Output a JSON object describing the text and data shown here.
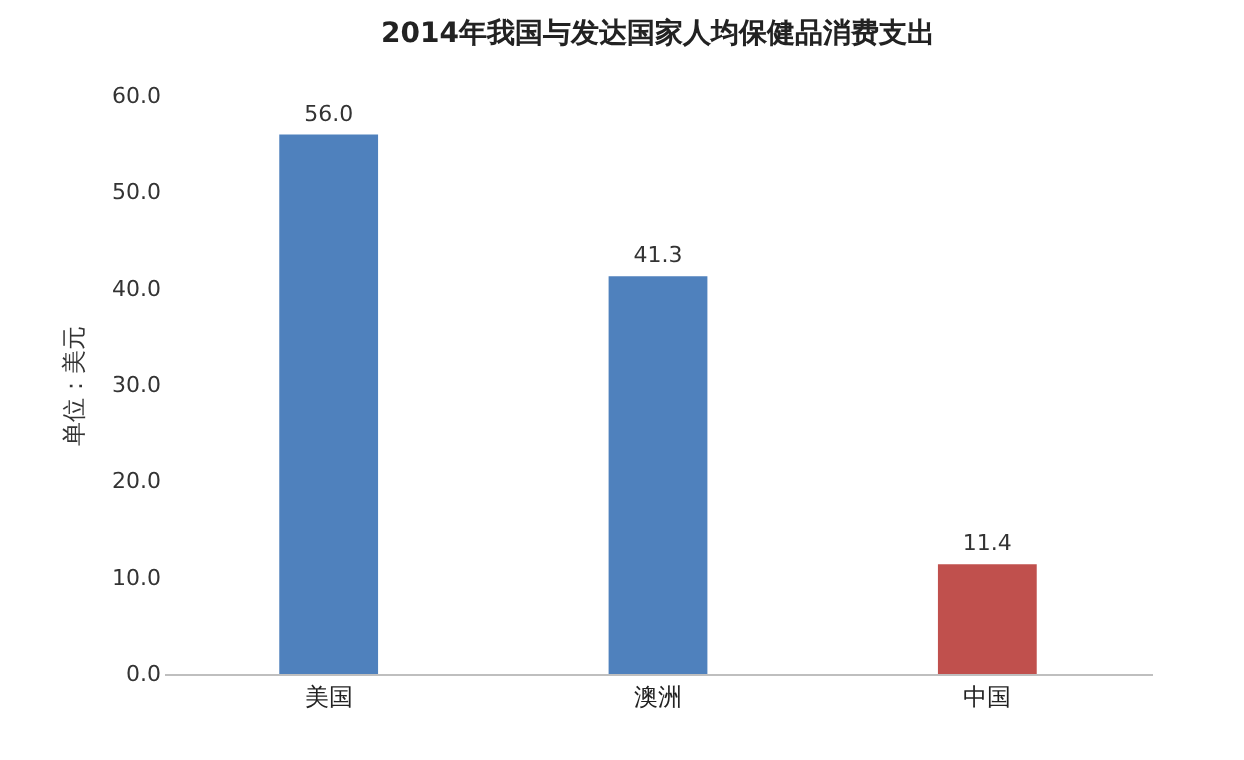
{
  "chart_data": {
    "type": "bar",
    "title": "2014年我国与发达国家人均保健品消费支出",
    "ylabel": "单位：美元",
    "categories": [
      "美国",
      "澳洲",
      "中国"
    ],
    "values": [
      56.0,
      41.3,
      11.4
    ],
    "colors": [
      "#4f81bd",
      "#4f81bd",
      "#c0504d"
    ],
    "value_labels": [
      "56.0",
      "41.3",
      "11.4"
    ],
    "ylim": [
      0,
      60
    ],
    "yticks": [
      {
        "value": 0,
        "label": "0.0"
      },
      {
        "value": 10,
        "label": "10.0"
      },
      {
        "value": 20,
        "label": "20.0"
      },
      {
        "value": 30,
        "label": "30.0"
      },
      {
        "value": 40,
        "label": "40.0"
      },
      {
        "value": 50,
        "label": "50.0"
      },
      {
        "value": 60,
        "label": "60.0"
      }
    ],
    "grid": false
  }
}
